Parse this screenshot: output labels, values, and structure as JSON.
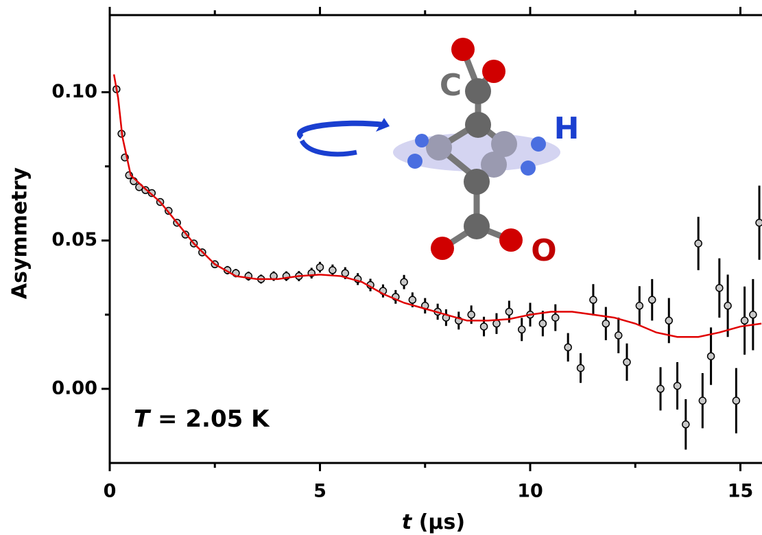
{
  "chart_data": {
    "type": "scatter",
    "y_label": "Asymmetry",
    "x_label_var": "t",
    "x_label_unit": "(μs)",
    "annotation_var": "T",
    "annotation_text": "= 2.05 K",
    "molecule_labels": {
      "c": "C",
      "h": "H",
      "o": "O"
    },
    "xlim": [
      0,
      15.5
    ],
    "ylim": [
      -0.025,
      0.126
    ],
    "xticks": [
      0,
      5,
      10,
      15
    ],
    "xminorticks": [
      2.5,
      7.5,
      12.5
    ],
    "yticks": [
      {
        "value": 0,
        "label": "0.00"
      },
      0.05,
      {
        "value": 0.1,
        "label": "0.10"
      }
    ],
    "yminorticks": [
      0.025,
      0.075
    ],
    "series": [
      {
        "type": "scatter",
        "color": "#c8c8c8",
        "x": [
          0.16,
          0.28,
          0.36,
          0.46,
          0.57,
          0.7,
          0.85,
          1.0,
          1.2,
          1.4,
          1.6,
          1.8,
          2.0,
          2.2,
          2.5,
          2.8,
          3.0,
          3.3,
          3.6,
          3.9,
          4.2,
          4.5,
          4.8,
          5.0,
          5.3,
          5.6,
          5.9,
          6.2,
          6.5,
          6.8,
          7.0,
          7.2,
          7.5,
          7.8,
          8.0,
          8.3,
          8.6,
          8.9,
          9.2,
          9.5,
          9.8,
          10.0,
          10.3,
          10.6,
          10.9,
          11.2,
          11.5,
          11.8,
          12.1,
          12.3,
          12.6,
          12.9,
          13.1,
          13.3,
          13.5,
          13.7,
          14.0,
          14.1,
          14.3,
          14.5,
          14.7,
          14.9,
          15.1,
          15.3,
          15.45
        ],
        "values": [
          0.101,
          0.086,
          0.078,
          0.072,
          0.07,
          0.068,
          0.067,
          0.066,
          0.063,
          0.06,
          0.056,
          0.052,
          0.049,
          0.046,
          0.042,
          0.04,
          0.039,
          0.038,
          0.037,
          0.038,
          0.038,
          0.038,
          0.039,
          0.041,
          0.04,
          0.039,
          0.037,
          0.035,
          0.033,
          0.031,
          0.036,
          0.03,
          0.028,
          0.026,
          0.024,
          0.023,
          0.025,
          0.021,
          0.022,
          0.026,
          0.02,
          0.025,
          0.022,
          0.024,
          0.014,
          0.007,
          0.03,
          0.022,
          0.018,
          0.009,
          0.028,
          0.03,
          0.0,
          0.023,
          0.001,
          -0.012,
          0.049,
          -0.004,
          0.011,
          0.034,
          0.028,
          -0.004,
          0.023,
          0.025,
          0.056
        ],
        "errors": [
          0.001,
          0.001,
          0.001,
          0.001,
          0.001,
          0.001,
          0.001,
          0.001,
          0.001,
          0.001,
          0.0012,
          0.0012,
          0.0012,
          0.0013,
          0.0013,
          0.0014,
          0.0014,
          0.0015,
          0.0015,
          0.0016,
          0.0016,
          0.0017,
          0.0018,
          0.0018,
          0.0019,
          0.002,
          0.002,
          0.0021,
          0.0022,
          0.0023,
          0.0024,
          0.0025,
          0.0026,
          0.0027,
          0.0028,
          0.003,
          0.0031,
          0.0033,
          0.0035,
          0.0037,
          0.0039,
          0.004,
          0.0043,
          0.0045,
          0.0048,
          0.005,
          0.0053,
          0.0056,
          0.006,
          0.0063,
          0.0066,
          0.007,
          0.0073,
          0.0076,
          0.008,
          0.0085,
          0.009,
          0.0093,
          0.0097,
          0.01,
          0.0105,
          0.011,
          0.0115,
          0.012,
          0.0125
        ]
      },
      {
        "type": "line",
        "color": "#e00000",
        "x": [
          0.1,
          0.2,
          0.3,
          0.5,
          0.8,
          1.2,
          1.6,
          2,
          2.5,
          3,
          3.5,
          4,
          4.5,
          5,
          5.5,
          6,
          6.5,
          7,
          7.5,
          8,
          8.5,
          9,
          9.5,
          10,
          10.5,
          11,
          11.5,
          12,
          12.5,
          13,
          13.5,
          14,
          14.5,
          15,
          15.5
        ],
        "values": [
          0.106,
          0.098,
          0.085,
          0.072,
          0.068,
          0.063,
          0.056,
          0.049,
          0.042,
          0.038,
          0.037,
          0.037,
          0.038,
          0.0385,
          0.038,
          0.036,
          0.032,
          0.029,
          0.027,
          0.025,
          0.023,
          0.023,
          0.0235,
          0.025,
          0.026,
          0.026,
          0.025,
          0.024,
          0.022,
          0.019,
          0.0175,
          0.0175,
          0.019,
          0.021,
          0.022
        ]
      }
    ]
  }
}
